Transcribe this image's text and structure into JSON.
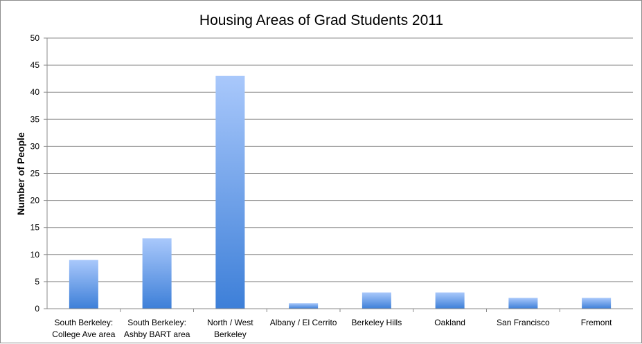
{
  "chart_data": {
    "type": "bar",
    "title": "Housing Areas of Grad Students 2011",
    "xlabel": "",
    "ylabel": "Number of People",
    "ylim": [
      0,
      50
    ],
    "yticks": [
      0,
      5,
      10,
      15,
      20,
      25,
      30,
      35,
      40,
      45,
      50
    ],
    "grid": true,
    "legend": "none",
    "categories": [
      "South Berkeley: College Ave area",
      "South Berkeley: Ashby BART area",
      "North / West Berkeley",
      "Albany / El Cerrito",
      "Berkeley Hills",
      "Oakland",
      "San Francisco",
      "Fremont"
    ],
    "category_lines": [
      [
        "South Berkeley:",
        "College Ave area"
      ],
      [
        "South Berkeley:",
        "Ashby BART area"
      ],
      [
        "North / West",
        "Berkeley"
      ],
      [
        "Albany / El Cerrito"
      ],
      [
        "Berkeley Hills"
      ],
      [
        "Oakland"
      ],
      [
        "San Francisco"
      ],
      [
        "Fremont"
      ]
    ],
    "values": [
      9,
      13,
      43,
      1,
      3,
      3,
      2,
      2
    ],
    "colors": {
      "bar_top": "#a9c8fb",
      "bar_bottom": "#3d7fd8",
      "grid": "#8a8a8a",
      "axis": "#8a8a8a"
    }
  }
}
